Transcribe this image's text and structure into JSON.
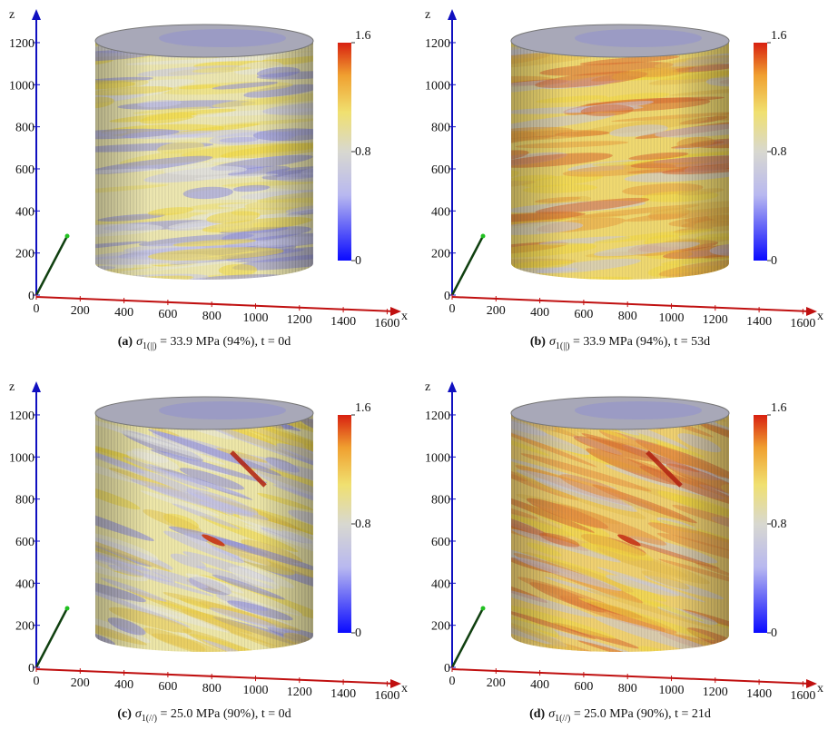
{
  "panels": [
    {
      "caption": {
        "label": "(a)",
        "symbol": "σ",
        "subscript": "1(||)",
        "text": " = 33.9 MPa (94%), t = 0d"
      },
      "z_label": "z",
      "x_label": "x",
      "z_ticks": [
        0,
        200,
        400,
        600,
        800,
        1000,
        1200
      ],
      "x_ticks": [
        0,
        200,
        400,
        600,
        800,
        1000,
        1200,
        1400,
        1600
      ],
      "colorbar_ticks": [
        0,
        0.8,
        1.6
      ]
    },
    {
      "caption": {
        "label": "(b)",
        "symbol": "σ",
        "subscript": "1(||)",
        "text": " = 33.9 MPa (94%), t = 53d"
      },
      "z_label": "z",
      "x_label": "x",
      "z_ticks": [
        0,
        200,
        400,
        600,
        800,
        1000,
        1200
      ],
      "x_ticks": [
        0,
        200,
        400,
        600,
        800,
        1000,
        1200,
        1400,
        1600
      ],
      "colorbar_ticks": [
        0,
        0.8,
        1.6
      ]
    },
    {
      "caption": {
        "label": "(c)",
        "symbol": "σ",
        "subscript": "1(//)",
        "text": " = 25.0 MPa (90%), t = 0d"
      },
      "z_label": "z",
      "x_label": "x",
      "z_ticks": [
        0,
        200,
        400,
        600,
        800,
        1000,
        1200
      ],
      "x_ticks": [
        0,
        200,
        400,
        600,
        800,
        1000,
        1200,
        1400,
        1600
      ],
      "colorbar_ticks": [
        0,
        0.8,
        1.6
      ]
    },
    {
      "caption": {
        "label": "(d)",
        "symbol": "σ",
        "subscript": "1(//)",
        "text": " = 25.0 MPa (90%), t = 21d"
      },
      "z_label": "z",
      "x_label": "x",
      "z_ticks": [
        0,
        200,
        400,
        600,
        800,
        1000,
        1200
      ],
      "x_ticks": [
        0,
        200,
        400,
        600,
        800,
        1000,
        1200,
        1400,
        1600
      ],
      "colorbar_ticks": [
        0,
        0.8,
        1.6
      ]
    }
  ]
}
